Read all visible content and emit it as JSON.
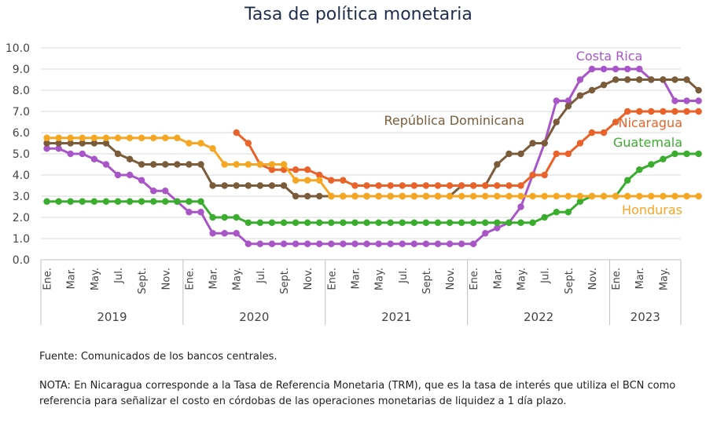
{
  "chart_data": {
    "type": "line",
    "title": "Tasa de política monetaria",
    "ylim": [
      0,
      10
    ],
    "yticks": [
      "0.0",
      "1.0",
      "2.0",
      "3.0",
      "4.0",
      "5.0",
      "6.0",
      "7.0",
      "8.0",
      "9.0",
      "10.0"
    ],
    "xtick_labels": [
      "Ene.",
      "Mar.",
      "May.",
      "Jul.",
      "Sept.",
      "Nov.",
      "Ene.",
      "Mar.",
      "May.",
      "Jul.",
      "Sept.",
      "Nov.",
      "Ene.",
      "Mar.",
      "May.",
      "Jul.",
      "Sept.",
      "Nov.",
      "Ene.",
      "Mar.",
      "May.",
      "Jul.",
      "Sept.",
      "Nov.",
      "Ene.",
      "Mar.",
      "May."
    ],
    "years": [
      "2019",
      "2020",
      "2021",
      "2022",
      "2023"
    ],
    "grid": true,
    "series": [
      {
        "name": "Costa Rica",
        "color": "#a855c8",
        "values": [
          5.25,
          5.25,
          5.0,
          5.0,
          4.75,
          4.5,
          4.0,
          4.0,
          3.75,
          3.25,
          3.25,
          2.75,
          2.25,
          2.25,
          1.25,
          1.25,
          1.25,
          0.75,
          0.75,
          0.75,
          0.75,
          0.75,
          0.75,
          0.75,
          0.75,
          0.75,
          0.75,
          0.75,
          0.75,
          0.75,
          0.75,
          0.75,
          0.75,
          0.75,
          0.75,
          0.75,
          0.75,
          1.25,
          1.5,
          1.75,
          2.5,
          4.0,
          5.5,
          7.5,
          7.5,
          8.5,
          9.0,
          9.0,
          9.0,
          9.0,
          9.0,
          8.5,
          8.5,
          7.5,
          7.5,
          7.5
        ]
      },
      {
        "name": "República Dominicana",
        "color": "#7a5c3a",
        "values": [
          5.5,
          5.5,
          5.5,
          5.5,
          5.5,
          5.5,
          5.0,
          4.75,
          4.5,
          4.5,
          4.5,
          4.5,
          4.5,
          4.5,
          3.5,
          3.5,
          3.5,
          3.5,
          3.5,
          3.5,
          3.5,
          3.0,
          3.0,
          3.0,
          3.0,
          3.0,
          3.0,
          3.0,
          3.0,
          3.0,
          3.0,
          3.0,
          3.0,
          3.0,
          3.0,
          3.5,
          3.5,
          3.5,
          4.5,
          5.0,
          5.0,
          5.5,
          5.5,
          6.5,
          7.25,
          7.75,
          8.0,
          8.25,
          8.5,
          8.5,
          8.5,
          8.5,
          8.5,
          8.5,
          8.5,
          8.0
        ]
      },
      {
        "name": "Nicaragua",
        "color": "#e8622a",
        "values": [
          null,
          null,
          null,
          null,
          null,
          null,
          null,
          null,
          null,
          null,
          null,
          null,
          null,
          null,
          null,
          null,
          6.0,
          5.5,
          4.5,
          4.25,
          4.25,
          4.25,
          4.25,
          4.0,
          3.75,
          3.75,
          3.5,
          3.5,
          3.5,
          3.5,
          3.5,
          3.5,
          3.5,
          3.5,
          3.5,
          3.5,
          3.5,
          3.5,
          3.5,
          3.5,
          3.5,
          4.0,
          4.0,
          5.0,
          5.0,
          5.5,
          6.0,
          6.0,
          6.5,
          7.0,
          7.0,
          7.0,
          7.0,
          7.0,
          7.0,
          7.0
        ]
      },
      {
        "name": "Guatemala",
        "color": "#3aad2e",
        "values": [
          2.75,
          2.75,
          2.75,
          2.75,
          2.75,
          2.75,
          2.75,
          2.75,
          2.75,
          2.75,
          2.75,
          2.75,
          2.75,
          2.75,
          2.0,
          2.0,
          2.0,
          1.75,
          1.75,
          1.75,
          1.75,
          1.75,
          1.75,
          1.75,
          1.75,
          1.75,
          1.75,
          1.75,
          1.75,
          1.75,
          1.75,
          1.75,
          1.75,
          1.75,
          1.75,
          1.75,
          1.75,
          1.75,
          1.75,
          1.75,
          1.75,
          1.75,
          2.0,
          2.25,
          2.25,
          2.75,
          3.0,
          3.0,
          3.0,
          3.75,
          4.25,
          4.5,
          4.75,
          5.0,
          5.0,
          5.0
        ]
      },
      {
        "name": "Honduras",
        "color": "#f5a623",
        "values": [
          5.75,
          5.75,
          5.75,
          5.75,
          5.75,
          5.75,
          5.75,
          5.75,
          5.75,
          5.75,
          5.75,
          5.75,
          5.5,
          5.5,
          5.25,
          4.5,
          4.5,
          4.5,
          4.5,
          4.5,
          4.5,
          3.75,
          3.75,
          3.75,
          3.0,
          3.0,
          3.0,
          3.0,
          3.0,
          3.0,
          3.0,
          3.0,
          3.0,
          3.0,
          3.0,
          3.0,
          3.0,
          3.0,
          3.0,
          3.0,
          3.0,
          3.0,
          3.0,
          3.0,
          3.0,
          3.0,
          3.0,
          3.0,
          3.0,
          3.0,
          3.0,
          3.0,
          3.0,
          3.0,
          3.0,
          3.0
        ]
      }
    ]
  },
  "footer": {
    "source": "Fuente: Comunicados de los bancos centrales.",
    "note": "NOTA: En Nicaragua corresponde a la Tasa de Referencia Monetaria (TRM), que es la tasa de interés que utiliza el BCN como referencia para señalizar el costo en córdobas de las operaciones monetarias de liquidez a 1 día plazo."
  }
}
